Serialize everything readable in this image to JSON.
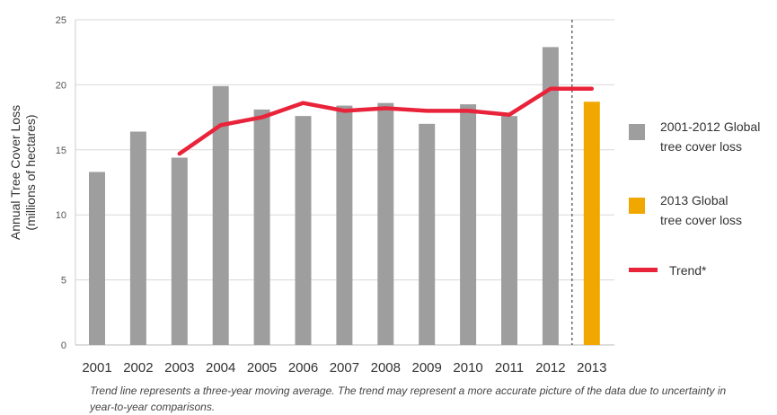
{
  "chart_data": {
    "type": "bar",
    "ylabel": "Annual Tree Cover Loss\n(millions of hectares)",
    "ylim": [
      0,
      25
    ],
    "yticks": [
      0,
      5,
      10,
      15,
      20,
      25
    ],
    "grid": true,
    "categories": [
      "2001",
      "2002",
      "2003",
      "2004",
      "2005",
      "2006",
      "2007",
      "2008",
      "2009",
      "2010",
      "2011",
      "2012",
      "2013"
    ],
    "series": [
      {
        "name": "2001-2012 Global tree cover loss",
        "color": "#9e9e9e",
        "values": [
          13.3,
          16.4,
          14.4,
          19.9,
          18.1,
          17.6,
          18.4,
          18.6,
          17.0,
          18.5,
          17.6,
          22.9,
          null
        ]
      },
      {
        "name": "2013 Global tree cover loss",
        "color": "#f0a800",
        "values": [
          null,
          null,
          null,
          null,
          null,
          null,
          null,
          null,
          null,
          null,
          null,
          null,
          18.7
        ]
      },
      {
        "name": "Trend*",
        "type": "line",
        "color": "#e8233a",
        "values": [
          null,
          null,
          14.7,
          16.9,
          17.5,
          18.6,
          18.0,
          18.2,
          18.0,
          18.0,
          17.7,
          19.7,
          19.7
        ]
      }
    ],
    "annotations": [
      "dashed vertical separator between 2012 and 2013"
    ],
    "legend_position": "right"
  },
  "legend": {
    "items": [
      {
        "label": "2001-2012  Global\ntree cover loss",
        "color": "#9e9e9e",
        "kind": "bar"
      },
      {
        "label": "2013 Global\ntree cover loss",
        "color": "#f0a800",
        "kind": "bar"
      },
      {
        "label": "Trend*",
        "color": "#e8233a",
        "kind": "line"
      }
    ]
  },
  "footnote": "Trend line represents a three-year moving average. The trend may represent a more accurate picture of the data due to uncertainty in year-to-year comparisons."
}
